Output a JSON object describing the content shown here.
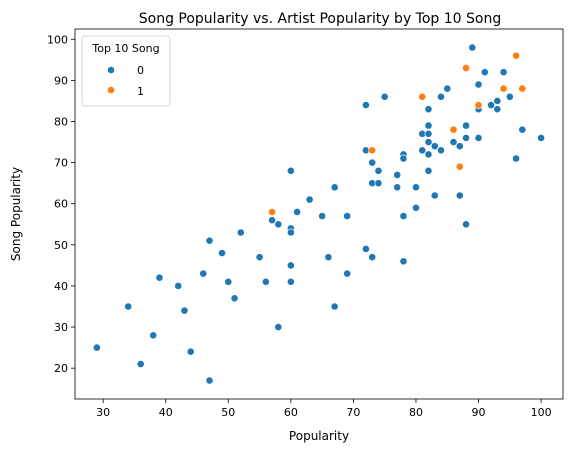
{
  "chart_data": {
    "type": "scatter",
    "title": "Song Popularity vs. Artist Popularity by Top 10 Song",
    "xlabel": "Popularity",
    "ylabel": "Song Popularity",
    "xlim": [
      25.5,
      103.5
    ],
    "ylim": [
      12.5,
      102.5
    ],
    "xticks": [
      30,
      40,
      50,
      60,
      70,
      80,
      90,
      100
    ],
    "yticks": [
      20,
      30,
      40,
      50,
      60,
      70,
      80,
      90,
      100
    ],
    "grid": false,
    "legend": {
      "title": "Top 10 Song",
      "placement": "top-left"
    },
    "series": [
      {
        "name": "0",
        "color": "#1f77b4",
        "points": [
          [
            29,
            25
          ],
          [
            34,
            35
          ],
          [
            36,
            21
          ],
          [
            38,
            28
          ],
          [
            39,
            42
          ],
          [
            42,
            40
          ],
          [
            43,
            34
          ],
          [
            44,
            24
          ],
          [
            46,
            43
          ],
          [
            47,
            17
          ],
          [
            47,
            51
          ],
          [
            49,
            48
          ],
          [
            50,
            41
          ],
          [
            51,
            37
          ],
          [
            52,
            53
          ],
          [
            55,
            47
          ],
          [
            56,
            41
          ],
          [
            57,
            56
          ],
          [
            58,
            30
          ],
          [
            58,
            55
          ],
          [
            60,
            54
          ],
          [
            60,
            53
          ],
          [
            60,
            45
          ],
          [
            60,
            41
          ],
          [
            60,
            68
          ],
          [
            61,
            58
          ],
          [
            63,
            61
          ],
          [
            65,
            57
          ],
          [
            66,
            47
          ],
          [
            67,
            64
          ],
          [
            67,
            35
          ],
          [
            69,
            57
          ],
          [
            69,
            43
          ],
          [
            72,
            84
          ],
          [
            72,
            73
          ],
          [
            72,
            49
          ],
          [
            73,
            47
          ],
          [
            73,
            70
          ],
          [
            73,
            65
          ],
          [
            74,
            68
          ],
          [
            74,
            65
          ],
          [
            75,
            86
          ],
          [
            77,
            67
          ],
          [
            77,
            64
          ],
          [
            78,
            72
          ],
          [
            78,
            71
          ],
          [
            78,
            57
          ],
          [
            78,
            46
          ],
          [
            80,
            64
          ],
          [
            80,
            59
          ],
          [
            81,
            73
          ],
          [
            81,
            77
          ],
          [
            82,
            79
          ],
          [
            82,
            77
          ],
          [
            82,
            83
          ],
          [
            82,
            75
          ],
          [
            82,
            72
          ],
          [
            82,
            68
          ],
          [
            83,
            74
          ],
          [
            83,
            62
          ],
          [
            84,
            86
          ],
          [
            84,
            73
          ],
          [
            85,
            88
          ],
          [
            86,
            75
          ],
          [
            87,
            74
          ],
          [
            87,
            62
          ],
          [
            88,
            79
          ],
          [
            88,
            76
          ],
          [
            88,
            55
          ],
          [
            89,
            98
          ],
          [
            90,
            89
          ],
          [
            90,
            83
          ],
          [
            90,
            76
          ],
          [
            91,
            92
          ],
          [
            92,
            84
          ],
          [
            93,
            83
          ],
          [
            93,
            85
          ],
          [
            94,
            92
          ],
          [
            95,
            86
          ],
          [
            96,
            71
          ],
          [
            97,
            78
          ],
          [
            100,
            76
          ]
        ]
      },
      {
        "name": "1",
        "color": "#ff7f0e",
        "points": [
          [
            57,
            58
          ],
          [
            73,
            73
          ],
          [
            81,
            86
          ],
          [
            86,
            78
          ],
          [
            87,
            69
          ],
          [
            88,
            93
          ],
          [
            90,
            84
          ],
          [
            94,
            88
          ],
          [
            96,
            96
          ],
          [
            97,
            88
          ]
        ]
      }
    ]
  }
}
